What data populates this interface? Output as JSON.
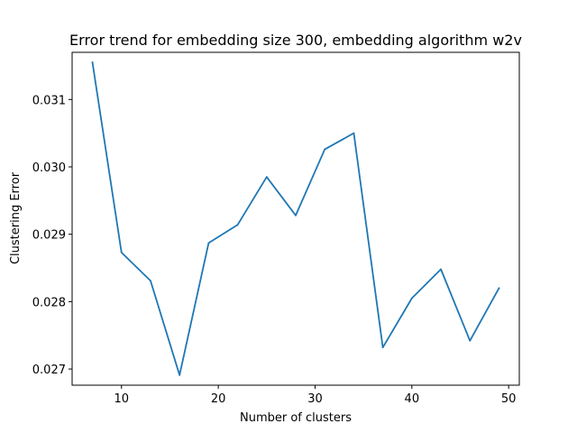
{
  "chart_data": {
    "type": "line",
    "title": "Error trend for embedding size 300, embedding algorithm w2v",
    "xlabel": "Number of clusters",
    "ylabel": "Clustering Error",
    "xlim": [
      4.9,
      51.1
    ],
    "ylim": [
      0.02676,
      0.0317
    ],
    "xticks": [
      10,
      20,
      30,
      40,
      50
    ],
    "xtick_labels": [
      "10",
      "20",
      "30",
      "40",
      "50"
    ],
    "yticks": [
      0.027,
      0.028,
      0.029,
      0.03,
      0.031
    ],
    "ytick_labels": [
      "0.027",
      "0.028",
      "0.029",
      "0.030",
      "0.031"
    ],
    "grid": false,
    "series": [
      {
        "name": "Clustering Error",
        "color": "#1f77b4",
        "x": [
          7,
          10,
          13,
          16,
          19,
          22,
          25,
          28,
          31,
          34,
          37,
          40,
          43,
          46,
          49
        ],
        "y": [
          0.03155,
          0.02873,
          0.02831,
          0.02691,
          0.02887,
          0.02914,
          0.02985,
          0.02928,
          0.03026,
          0.0305,
          0.02732,
          0.02805,
          0.02848,
          0.02742,
          0.0282
        ]
      }
    ]
  }
}
